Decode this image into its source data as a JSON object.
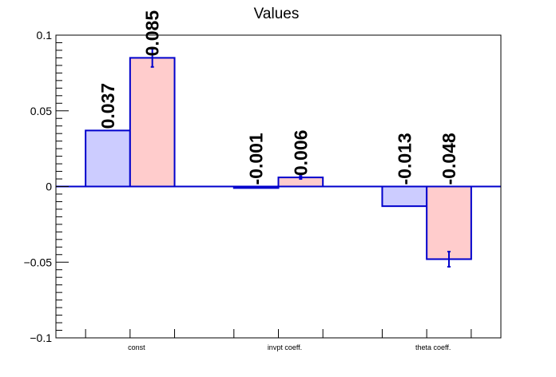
{
  "chart_data": {
    "type": "bar",
    "title": "Values",
    "xlabel": "",
    "ylabel": "",
    "categories": [
      "const",
      "invpt coeff.",
      "theta coeff."
    ],
    "ylim": [
      -0.1,
      0.1
    ],
    "yticks": [
      {
        "value": 0.1,
        "label": "0.1"
      },
      {
        "value": 0.05,
        "label": "0.05"
      },
      {
        "value": 0,
        "label": "0"
      },
      {
        "value": -0.05,
        "label": "−0.05"
      },
      {
        "value": -0.1,
        "label": "−0.1"
      }
    ],
    "grid": false,
    "series": [
      {
        "values": [
          0.037,
          -0.001,
          -0.013
        ],
        "labels": [
          "0.037",
          "-0.001",
          "-0.013"
        ],
        "errors": [
          0,
          0,
          0
        ],
        "fill": "#ccccff",
        "stroke": "#0000cc"
      },
      {
        "values": [
          0.085,
          0.006,
          -0.048
        ],
        "labels": [
          "0.085",
          "0.006",
          "-0.048"
        ],
        "errors": [
          0.006,
          0.001,
          0.005
        ],
        "fill": "#ffcccc",
        "stroke": "#0000cc"
      }
    ]
  }
}
